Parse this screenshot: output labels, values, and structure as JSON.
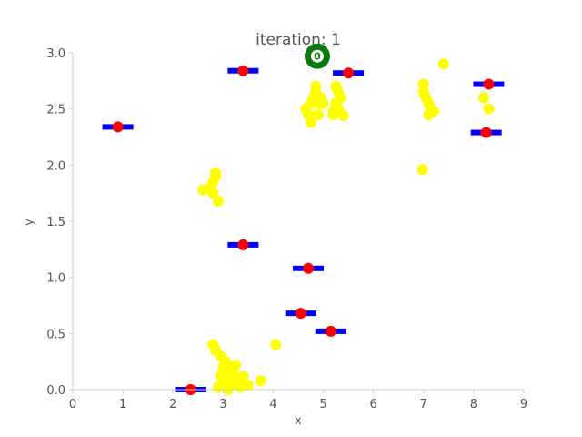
{
  "chart_data": {
    "type": "scatter",
    "title": "iteration: 1",
    "xlabel": "x",
    "ylabel": "y",
    "xlim": [
      0,
      9
    ],
    "ylim": [
      0,
      3.0
    ],
    "x_ticks": [
      "0",
      "1",
      "2",
      "3",
      "4",
      "5",
      "6",
      "7",
      "8",
      "9"
    ],
    "y_ticks": [
      "0.0",
      "0.5",
      "1.0",
      "1.5",
      "2.0",
      "2.5",
      "3.0"
    ],
    "grid": false,
    "colors": {
      "points": "#ffff00",
      "markers": "#ff0000",
      "segments": "#0000ff",
      "special": "#0a7a0a",
      "axis_text": "#555555",
      "spines": "#cccccc"
    },
    "series": [
      {
        "kind": "yellow-points",
        "points": [
          [
            2.9,
            0.02
          ],
          [
            3.0,
            0.05
          ],
          [
            3.1,
            0.1
          ],
          [
            3.2,
            0.15
          ],
          [
            3.3,
            0.08
          ],
          [
            3.4,
            0.12
          ],
          [
            3.0,
            0.2
          ],
          [
            2.95,
            0.3
          ],
          [
            3.05,
            0.25
          ],
          [
            3.15,
            0.18
          ],
          [
            2.85,
            0.35
          ],
          [
            2.8,
            0.4
          ],
          [
            3.2,
            0.05
          ],
          [
            3.35,
            0.02
          ],
          [
            3.5,
            0.04
          ],
          [
            3.1,
            0.0
          ],
          [
            2.95,
            0.12
          ],
          [
            3.25,
            0.22
          ],
          [
            3.75,
            0.08
          ],
          [
            4.05,
            0.4
          ],
          [
            2.6,
            1.78
          ],
          [
            2.75,
            1.8
          ],
          [
            2.8,
            1.85
          ],
          [
            2.85,
            1.9
          ],
          [
            2.85,
            1.93
          ],
          [
            2.9,
            1.68
          ],
          [
            2.8,
            1.75
          ],
          [
            4.65,
            2.5
          ],
          [
            4.75,
            2.55
          ],
          [
            4.8,
            2.6
          ],
          [
            4.85,
            2.65
          ],
          [
            4.9,
            2.55
          ],
          [
            4.7,
            2.45
          ],
          [
            4.95,
            2.6
          ],
          [
            4.75,
            2.38
          ],
          [
            4.9,
            2.45
          ],
          [
            4.85,
            2.7
          ],
          [
            5.0,
            2.55
          ],
          [
            5.2,
            2.45
          ],
          [
            5.3,
            2.5
          ],
          [
            5.25,
            2.55
          ],
          [
            5.35,
            2.6
          ],
          [
            5.4,
            2.44
          ],
          [
            5.3,
            2.65
          ],
          [
            5.25,
            2.7
          ],
          [
            5.2,
            2.48
          ],
          [
            7.0,
            2.72
          ],
          [
            7.05,
            2.6
          ],
          [
            7.1,
            2.55
          ],
          [
            7.15,
            2.5
          ],
          [
            7.2,
            2.48
          ],
          [
            7.0,
            2.65
          ],
          [
            7.1,
            2.45
          ],
          [
            7.4,
            2.9
          ],
          [
            6.98,
            1.96
          ],
          [
            8.2,
            2.6
          ],
          [
            8.3,
            2.5
          ]
        ]
      },
      {
        "kind": "red-markers-with-blue-bars",
        "points": [
          [
            0.9,
            2.34
          ],
          [
            3.4,
            2.84
          ],
          [
            5.5,
            2.82
          ],
          [
            8.3,
            2.72
          ],
          [
            8.25,
            2.29
          ],
          [
            3.4,
            1.29
          ],
          [
            4.7,
            1.08
          ],
          [
            4.55,
            0.68
          ],
          [
            5.15,
            0.52
          ],
          [
            2.35,
            0.0
          ]
        ]
      },
      {
        "kind": "green-marker",
        "label": "0",
        "point": [
          4.88,
          2.97
        ]
      }
    ]
  }
}
